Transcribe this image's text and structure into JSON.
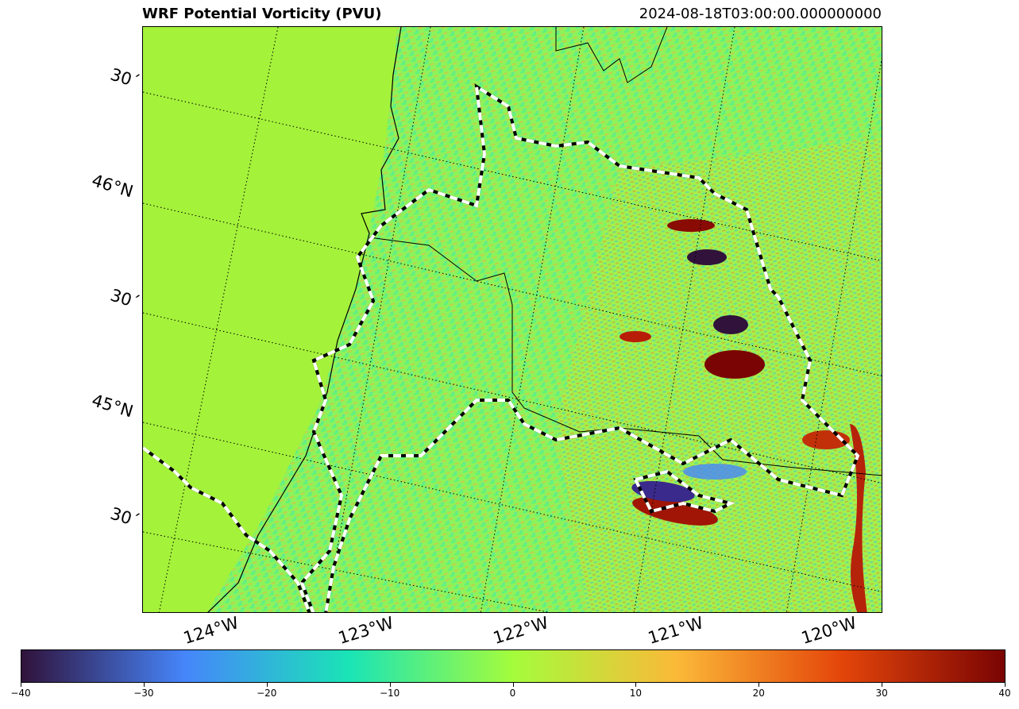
{
  "title": "WRF Potential Vorticity (PVU)",
  "timestamp": "2024-08-18T03:00:00.000000000",
  "lat_labels": [
    "30´",
    "46°N",
    "30´",
    "45°N",
    "30´"
  ],
  "lon_labels": [
    "124°W",
    "123°W",
    "122°W",
    "121°W",
    "120°W"
  ],
  "colorbar": {
    "cmap": "turbo",
    "min": -40,
    "max": 40,
    "tick_labels": [
      "−40",
      "−30",
      "−20",
      "−10",
      "0",
      "10",
      "20",
      "30",
      "40"
    ],
    "colors": [
      "#30123b",
      "#4686fb",
      "#1ae4b6",
      "#a4fc3c",
      "#fbb938",
      "#e4460a",
      "#7a0403"
    ]
  },
  "map": {
    "ocean_color": "#a4f23a",
    "land_color": "#9cf04a"
  }
}
